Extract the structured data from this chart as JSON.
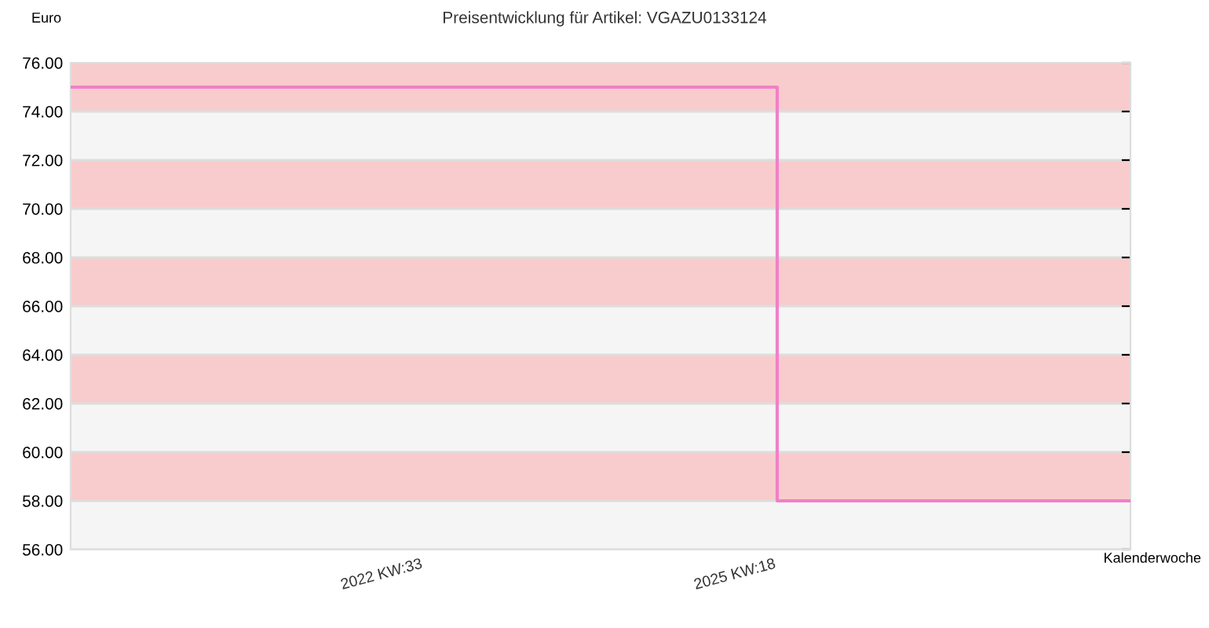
{
  "chart_data": {
    "type": "step",
    "title": "Preisentwicklung für Artikel: VGAZU0133124",
    "ylabel": "Euro",
    "xlabel": "Kalenderwoche",
    "categories": [
      null,
      "2022 KW:33",
      "2025 KW:18",
      null
    ],
    "series": [
      {
        "color": "#f080c8",
        "values": [
          75,
          75,
          58,
          58
        ]
      }
    ],
    "ylim": [
      56,
      76
    ],
    "yticks": [
      {
        "value": 56,
        "label": "56.00"
      },
      {
        "value": 58,
        "label": "58.00"
      },
      {
        "value": 60,
        "label": "60.00"
      },
      {
        "value": 62,
        "label": "62.00"
      },
      {
        "value": 64,
        "label": "64.00"
      },
      {
        "value": 66,
        "label": "66.00"
      },
      {
        "value": 68,
        "label": "68.00"
      },
      {
        "value": 70,
        "label": "70.00"
      },
      {
        "value": 72,
        "label": "72.00"
      },
      {
        "value": 74,
        "label": "74.00"
      },
      {
        "value": 76,
        "label": "76.00"
      }
    ],
    "bands": [
      {
        "axis": "y",
        "from": 56,
        "to": 58,
        "color": "#f5f5f5"
      },
      {
        "axis": "y",
        "from": 58,
        "to": 60,
        "color": "#f8cccc"
      },
      {
        "axis": "y",
        "from": 60,
        "to": 62,
        "color": "#f5f5f5"
      },
      {
        "axis": "y",
        "from": 62,
        "to": 64,
        "color": "#f8cccc"
      },
      {
        "axis": "y",
        "from": 64,
        "to": 66,
        "color": "#f5f5f5"
      },
      {
        "axis": "y",
        "from": 66,
        "to": 68,
        "color": "#f8cccc"
      },
      {
        "axis": "y",
        "from": 68,
        "to": 70,
        "color": "#f5f5f5"
      },
      {
        "axis": "y",
        "from": 70,
        "to": 72,
        "color": "#f8cccc"
      },
      {
        "axis": "y",
        "from": 72,
        "to": 74,
        "color": "#f5f5f5"
      },
      {
        "axis": "y",
        "from": 74,
        "to": 76,
        "color": "#f8cccc"
      }
    ],
    "grid": "y",
    "legend": false
  }
}
